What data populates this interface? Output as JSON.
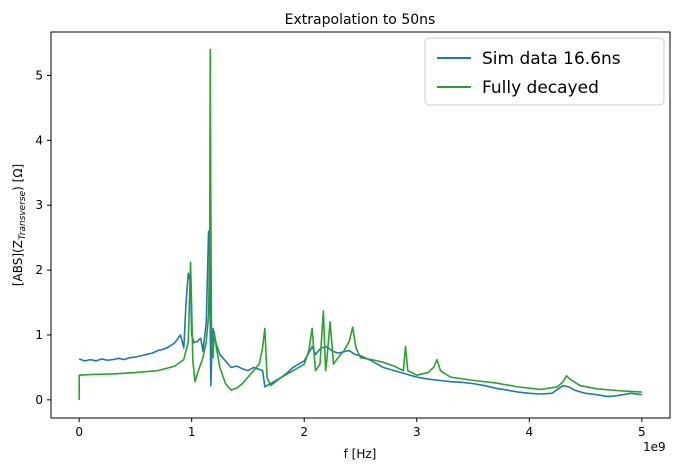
{
  "chart_data": {
    "type": "line",
    "title": "Extrapolation to 50ns",
    "xlabel": "f [Hz]",
    "ylabel": "[ABS](Z_Transverse) [Ω]",
    "ylabel_parts": {
      "base": "[ABS](Z",
      "sub": "Transverse",
      "tail": ") [Ω]"
    },
    "x_offset_label": "1e9",
    "xlim": [
      -0.25,
      5.25
    ],
    "ylim": [
      -0.28,
      5.67
    ],
    "x_ticks": [
      0,
      1,
      2,
      3,
      4,
      5
    ],
    "x_tick_labels": [
      "0",
      "1",
      "2",
      "3",
      "4",
      "5"
    ],
    "y_ticks": [
      0,
      1,
      2,
      3,
      4,
      5
    ],
    "y_tick_labels": [
      "0",
      "1",
      "2",
      "3",
      "4",
      "5"
    ],
    "grid": false,
    "legend_position": "top-right",
    "series": [
      {
        "name": "Sim data 16.6ns",
        "color": "#1f77b4",
        "x": [
          0,
          0.05,
          0.1,
          0.15,
          0.2,
          0.25,
          0.3,
          0.35,
          0.4,
          0.45,
          0.5,
          0.55,
          0.6,
          0.65,
          0.7,
          0.75,
          0.8,
          0.85,
          0.9,
          0.93,
          0.95,
          0.97,
          0.99,
          1.0,
          1.02,
          1.05,
          1.08,
          1.1,
          1.13,
          1.15,
          1.16,
          1.17,
          1.18,
          1.19,
          1.2,
          1.22,
          1.25,
          1.3,
          1.35,
          1.4,
          1.45,
          1.5,
          1.55,
          1.6,
          1.63,
          1.65,
          1.67,
          1.7,
          1.75,
          1.8,
          1.85,
          1.9,
          1.95,
          2.0,
          2.05,
          2.07,
          2.1,
          2.15,
          2.2,
          2.25,
          2.3,
          2.35,
          2.4,
          2.45,
          2.5,
          2.6,
          2.7,
          2.8,
          2.9,
          3.0,
          3.1,
          3.2,
          3.3,
          3.4,
          3.5,
          3.6,
          3.7,
          3.8,
          3.9,
          4.0,
          4.1,
          4.2,
          4.3,
          4.35,
          4.4,
          4.5,
          4.6,
          4.7,
          4.8,
          4.9,
          5.0
        ],
        "y": [
          0.63,
          0.6,
          0.62,
          0.6,
          0.63,
          0.61,
          0.62,
          0.64,
          0.62,
          0.65,
          0.66,
          0.68,
          0.7,
          0.72,
          0.76,
          0.78,
          0.82,
          0.88,
          1.0,
          0.8,
          1.5,
          1.95,
          1.8,
          1.0,
          0.88,
          0.9,
          0.95,
          0.75,
          1.2,
          2.6,
          2.2,
          0.22,
          0.8,
          1.1,
          1.0,
          0.85,
          0.7,
          0.6,
          0.5,
          0.52,
          0.48,
          0.45,
          0.5,
          0.47,
          0.45,
          0.2,
          0.22,
          0.25,
          0.3,
          0.35,
          0.42,
          0.5,
          0.55,
          0.6,
          0.75,
          0.82,
          0.7,
          0.8,
          0.82,
          0.75,
          0.72,
          0.74,
          0.76,
          0.7,
          0.68,
          0.6,
          0.5,
          0.45,
          0.4,
          0.35,
          0.32,
          0.3,
          0.28,
          0.27,
          0.25,
          0.22,
          0.18,
          0.15,
          0.12,
          0.1,
          0.09,
          0.1,
          0.22,
          0.2,
          0.15,
          0.1,
          0.08,
          0.05,
          0.07,
          0.1,
          0.08
        ]
      },
      {
        "name": "Fully decayed",
        "color": "#2ca02c",
        "x": [
          0,
          0.001,
          0.1,
          0.3,
          0.5,
          0.7,
          0.85,
          0.93,
          0.97,
          0.99,
          1.0,
          1.01,
          1.03,
          1.05,
          1.08,
          1.1,
          1.13,
          1.15,
          1.16,
          1.165,
          1.17,
          1.175,
          1.18,
          1.19,
          1.2,
          1.22,
          1.25,
          1.3,
          1.35,
          1.4,
          1.45,
          1.5,
          1.55,
          1.6,
          1.63,
          1.65,
          1.67,
          1.7,
          1.8,
          1.9,
          2.0,
          2.04,
          2.07,
          2.1,
          2.14,
          2.17,
          2.19,
          2.2,
          2.23,
          2.26,
          2.3,
          2.35,
          2.4,
          2.43,
          2.46,
          2.5,
          2.6,
          2.7,
          2.8,
          2.88,
          2.9,
          2.92,
          3.0,
          3.1,
          3.15,
          3.18,
          3.21,
          3.3,
          3.5,
          3.7,
          3.9,
          4.1,
          4.25,
          4.3,
          4.33,
          4.36,
          4.45,
          4.6,
          4.8,
          5.0
        ],
        "y": [
          0,
          0.38,
          0.39,
          0.4,
          0.42,
          0.45,
          0.52,
          0.62,
          0.9,
          2.12,
          1.4,
          0.6,
          0.28,
          0.4,
          0.55,
          0.65,
          0.9,
          1.3,
          2.3,
          5.4,
          3.0,
          1.2,
          0.8,
          0.65,
          1.05,
          0.8,
          0.5,
          0.25,
          0.15,
          0.18,
          0.25,
          0.35,
          0.45,
          0.55,
          0.8,
          1.1,
          0.35,
          0.22,
          0.35,
          0.45,
          0.55,
          0.75,
          1.1,
          0.45,
          0.55,
          1.37,
          0.45,
          0.6,
          1.2,
          0.55,
          0.65,
          0.75,
          0.9,
          1.12,
          0.8,
          0.65,
          0.62,
          0.58,
          0.52,
          0.45,
          0.82,
          0.45,
          0.38,
          0.42,
          0.5,
          0.62,
          0.45,
          0.35,
          0.3,
          0.26,
          0.2,
          0.16,
          0.2,
          0.28,
          0.37,
          0.32,
          0.22,
          0.17,
          0.14,
          0.12
        ]
      }
    ]
  }
}
